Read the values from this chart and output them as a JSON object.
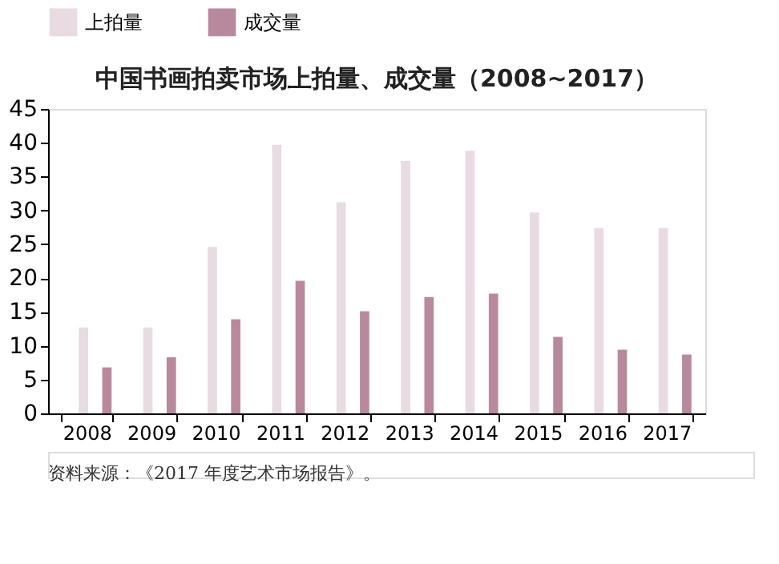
{
  "chart_data": {
    "type": "bar",
    "title": "中国书画拍卖市场上拍量、成交量（2008~2017）",
    "categories": [
      "2008",
      "2009",
      "2010",
      "2011",
      "2012",
      "2013",
      "2014",
      "2015",
      "2016",
      "2017"
    ],
    "series": [
      {
        "name": "上拍量",
        "color": "#e8dbe2",
        "values": [
          12.7,
          12.7,
          24.6,
          39.7,
          31.2,
          37.3,
          38.8,
          29.7,
          27.4,
          27.4
        ]
      },
      {
        "name": "成交量",
        "color": "#b8899c",
        "values": [
          6.8,
          8.3,
          13.9,
          19.6,
          15.1,
          17.2,
          17.7,
          11.3,
          9.4,
          8.7
        ]
      }
    ],
    "ylim": [
      0,
      45
    ],
    "yticks": [
      0,
      5,
      10,
      15,
      20,
      25,
      30,
      35,
      40,
      45
    ],
    "grid": false,
    "legend": "top",
    "annotations": [
      "资料来源：《2017 年度艺术市场报告》。"
    ]
  }
}
